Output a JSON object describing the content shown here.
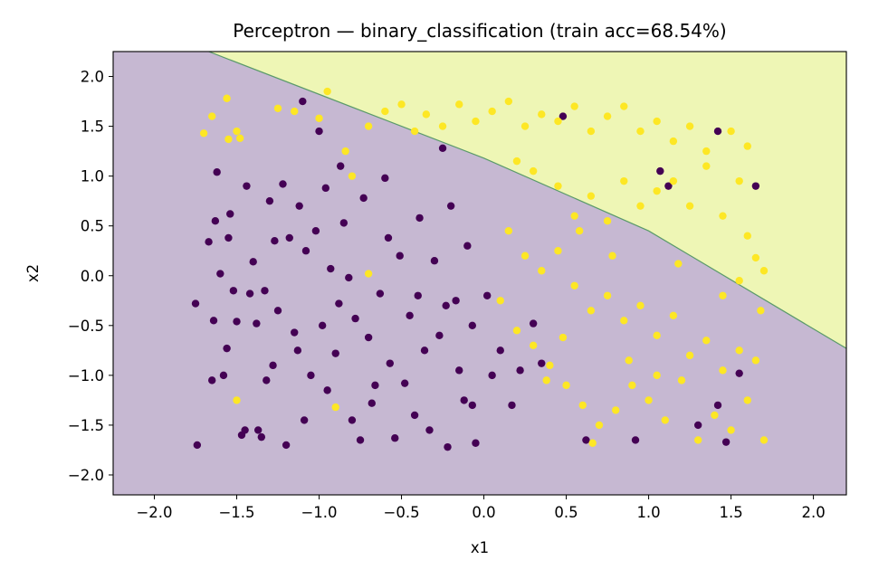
{
  "chart_data": {
    "type": "scatter",
    "title": "Perceptron — binary_classification  (train acc=68.54%)",
    "xlabel": "x1",
    "ylabel": "x2",
    "xlim": [
      -2.25,
      2.2
    ],
    "ylim": [
      -2.2,
      2.25
    ],
    "xticks": [
      -2.0,
      -1.5,
      -1.0,
      -0.5,
      0.0,
      0.5,
      1.0,
      1.5,
      2.0
    ],
    "xtick_labels": [
      "−2.0",
      "−1.5",
      "−1.0",
      "−0.5",
      "0.0",
      "0.5",
      "1.0",
      "1.5",
      "2.0"
    ],
    "yticks": [
      2.0,
      1.5,
      1.0,
      0.5,
      0.0,
      -0.5,
      -1.0,
      -1.5,
      -2.0
    ],
    "ytick_labels": [
      "2.0",
      "1.5",
      "1.0",
      "0.5",
      "0.0",
      "−0.5",
      "−1.0",
      "−1.5",
      "−2.0"
    ],
    "grid": false,
    "legend": "none",
    "decision_boundary": {
      "points": [
        [
          -1.67,
          2.25
        ],
        [
          0.0,
          1.18
        ],
        [
          1.0,
          0.45
        ],
        [
          2.2,
          -0.73
        ]
      ],
      "region_above_color": "#eef6b5",
      "region_below_color": "#c6b8d2",
      "line_color": "#5a9a6a"
    },
    "colors": {
      "class_0": "#440154",
      "class_1": "#fde725"
    },
    "series": [
      {
        "values": [
          [
            -1.75,
            -0.28
          ],
          [
            -1.74,
            -1.7
          ],
          [
            -1.67,
            0.34
          ],
          [
            -1.65,
            -1.05
          ],
          [
            -1.64,
            -0.45
          ],
          [
            -1.63,
            0.55
          ],
          [
            -1.62,
            1.04
          ],
          [
            -1.6,
            0.02
          ],
          [
            -1.58,
            -1.0
          ],
          [
            -1.56,
            -0.73
          ],
          [
            -1.55,
            0.38
          ],
          [
            -1.54,
            0.62
          ],
          [
            -1.52,
            -0.15
          ],
          [
            -1.5,
            -0.46
          ],
          [
            -1.47,
            -1.6
          ],
          [
            -1.44,
            0.9
          ],
          [
            -1.42,
            -0.18
          ],
          [
            -1.4,
            0.14
          ],
          [
            -1.38,
            -0.48
          ],
          [
            -1.37,
            -1.55
          ],
          [
            -1.35,
            -1.62
          ],
          [
            -1.33,
            -0.15
          ],
          [
            -1.32,
            -1.05
          ],
          [
            -1.3,
            0.75
          ],
          [
            -1.28,
            -0.9
          ],
          [
            -1.25,
            -0.35
          ],
          [
            -1.22,
            0.92
          ],
          [
            -1.2,
            -1.7
          ],
          [
            -1.18,
            0.38
          ],
          [
            -1.15,
            -0.57
          ],
          [
            -1.12,
            0.7
          ],
          [
            -1.1,
            1.75
          ],
          [
            -1.09,
            -1.45
          ],
          [
            -1.08,
            0.25
          ],
          [
            -1.05,
            -1.0
          ],
          [
            -1.02,
            0.45
          ],
          [
            -1.0,
            1.45
          ],
          [
            -0.98,
            -0.5
          ],
          [
            -0.95,
            -1.15
          ],
          [
            -0.93,
            0.07
          ],
          [
            -0.9,
            -0.78
          ],
          [
            -0.87,
            1.1
          ],
          [
            -0.85,
            0.53
          ],
          [
            -0.82,
            -0.02
          ],
          [
            -0.8,
            -1.45
          ],
          [
            -0.78,
            -0.43
          ],
          [
            -0.75,
            -1.65
          ],
          [
            -0.73,
            0.78
          ],
          [
            -0.7,
            -0.62
          ],
          [
            -0.66,
            -1.1
          ],
          [
            -0.63,
            -0.18
          ],
          [
            -0.6,
            0.98
          ],
          [
            -0.57,
            -0.88
          ],
          [
            -0.54,
            -1.63
          ],
          [
            -0.51,
            0.2
          ],
          [
            -0.48,
            -1.08
          ],
          [
            -0.45,
            -0.4
          ],
          [
            -0.42,
            -1.4
          ],
          [
            -0.39,
            0.58
          ],
          [
            -0.36,
            -0.75
          ],
          [
            -0.33,
            -1.55
          ],
          [
            -0.3,
            0.15
          ],
          [
            -0.27,
            -0.6
          ],
          [
            -0.25,
            1.28
          ],
          [
            -0.22,
            -1.72
          ],
          [
            -0.2,
            0.7
          ],
          [
            -0.17,
            -0.25
          ],
          [
            -0.15,
            -0.95
          ],
          [
            -0.12,
            -1.25
          ],
          [
            -0.1,
            0.3
          ],
          [
            -0.07,
            -0.5
          ],
          [
            -0.05,
            -1.68
          ],
          [
            0.02,
            -0.2
          ],
          [
            0.05,
            -1.0
          ],
          [
            0.1,
            -0.75
          ],
          [
            0.17,
            -1.3
          ],
          [
            0.22,
            -0.95
          ],
          [
            0.3,
            -0.48
          ],
          [
            0.35,
            -0.88
          ],
          [
            0.48,
            1.6
          ],
          [
            0.62,
            -1.65
          ],
          [
            0.92,
            -1.65
          ],
          [
            1.07,
            1.05
          ],
          [
            1.12,
            0.9
          ],
          [
            1.3,
            -1.5
          ],
          [
            1.42,
            -1.3
          ],
          [
            1.42,
            1.45
          ],
          [
            1.47,
            -1.67
          ],
          [
            1.55,
            -0.98
          ],
          [
            1.65,
            0.9
          ],
          [
            -0.4,
            -0.2
          ],
          [
            -0.58,
            0.38
          ],
          [
            -0.68,
            -1.28
          ],
          [
            -0.88,
            -0.28
          ],
          [
            -1.13,
            -0.75
          ],
          [
            -1.45,
            -1.55
          ],
          [
            -1.27,
            0.35
          ],
          [
            -0.96,
            0.88
          ],
          [
            -0.23,
            -0.3
          ],
          [
            -0.07,
            -1.3
          ]
        ]
      },
      {
        "values": [
          [
            -1.7,
            1.43
          ],
          [
            -1.65,
            1.6
          ],
          [
            -1.56,
            1.78
          ],
          [
            -1.55,
            1.37
          ],
          [
            -1.5,
            1.45
          ],
          [
            -1.48,
            1.38
          ],
          [
            -1.5,
            -1.25
          ],
          [
            -1.25,
            1.68
          ],
          [
            -1.15,
            1.65
          ],
          [
            -1.0,
            1.58
          ],
          [
            -0.95,
            1.85
          ],
          [
            -0.84,
            1.25
          ],
          [
            -0.8,
            1.0
          ],
          [
            -0.7,
            1.5
          ],
          [
            -0.6,
            1.65
          ],
          [
            -0.5,
            1.72
          ],
          [
            -0.42,
            1.45
          ],
          [
            -0.35,
            1.62
          ],
          [
            -0.25,
            1.5
          ],
          [
            -0.15,
            1.72
          ],
          [
            -0.05,
            1.55
          ],
          [
            0.05,
            1.65
          ],
          [
            0.15,
            1.75
          ],
          [
            0.25,
            1.5
          ],
          [
            0.35,
            1.62
          ],
          [
            0.45,
            1.55
          ],
          [
            0.55,
            1.7
          ],
          [
            0.65,
            1.45
          ],
          [
            0.75,
            1.6
          ],
          [
            0.85,
            1.7
          ],
          [
            0.95,
            1.45
          ],
          [
            1.05,
            1.55
          ],
          [
            1.15,
            1.35
          ],
          [
            1.25,
            1.5
          ],
          [
            1.35,
            1.25
          ],
          [
            1.5,
            1.45
          ],
          [
            1.6,
            1.3
          ],
          [
            0.2,
            1.15
          ],
          [
            0.3,
            1.05
          ],
          [
            0.45,
            0.9
          ],
          [
            0.55,
            0.6
          ],
          [
            0.65,
            0.8
          ],
          [
            0.75,
            0.55
          ],
          [
            0.85,
            0.95
          ],
          [
            0.95,
            0.7
          ],
          [
            1.05,
            0.85
          ],
          [
            1.15,
            0.95
          ],
          [
            1.25,
            0.7
          ],
          [
            1.35,
            1.1
          ],
          [
            1.45,
            0.6
          ],
          [
            1.55,
            0.95
          ],
          [
            1.6,
            0.4
          ],
          [
            1.65,
            0.18
          ],
          [
            1.7,
            0.05
          ],
          [
            1.55,
            -0.05
          ],
          [
            0.15,
            0.45
          ],
          [
            0.25,
            0.2
          ],
          [
            0.35,
            0.05
          ],
          [
            0.45,
            0.25
          ],
          [
            0.55,
            -0.1
          ],
          [
            0.65,
            -0.35
          ],
          [
            0.75,
            -0.2
          ],
          [
            0.85,
            -0.45
          ],
          [
            0.95,
            -0.3
          ],
          [
            1.05,
            -0.6
          ],
          [
            1.15,
            -0.4
          ],
          [
            1.25,
            -0.8
          ],
          [
            1.35,
            -0.65
          ],
          [
            1.45,
            -0.95
          ],
          [
            1.55,
            -0.75
          ],
          [
            1.65,
            -0.85
          ],
          [
            0.1,
            -0.25
          ],
          [
            0.2,
            -0.55
          ],
          [
            0.3,
            -0.7
          ],
          [
            0.4,
            -0.9
          ],
          [
            0.5,
            -1.1
          ],
          [
            0.6,
            -1.3
          ],
          [
            0.7,
            -1.5
          ],
          [
            0.8,
            -1.35
          ],
          [
            0.9,
            -1.1
          ],
          [
            1.0,
            -1.25
          ],
          [
            1.1,
            -1.45
          ],
          [
            1.2,
            -1.05
          ],
          [
            1.3,
            -1.65
          ],
          [
            1.4,
            -1.4
          ],
          [
            1.5,
            -1.55
          ],
          [
            1.6,
            -1.25
          ],
          [
            1.7,
            -1.65
          ],
          [
            -0.9,
            -1.32
          ],
          [
            -0.7,
            0.02
          ],
          [
            0.66,
            -1.68
          ],
          [
            0.38,
            -1.05
          ],
          [
            0.58,
            0.45
          ],
          [
            0.88,
            -0.85
          ],
          [
            1.18,
            0.12
          ],
          [
            1.45,
            -0.2
          ],
          [
            0.48,
            -0.62
          ],
          [
            0.78,
            0.2
          ],
          [
            1.68,
            -0.35
          ],
          [
            1.05,
            -1.0
          ]
        ]
      }
    ]
  }
}
